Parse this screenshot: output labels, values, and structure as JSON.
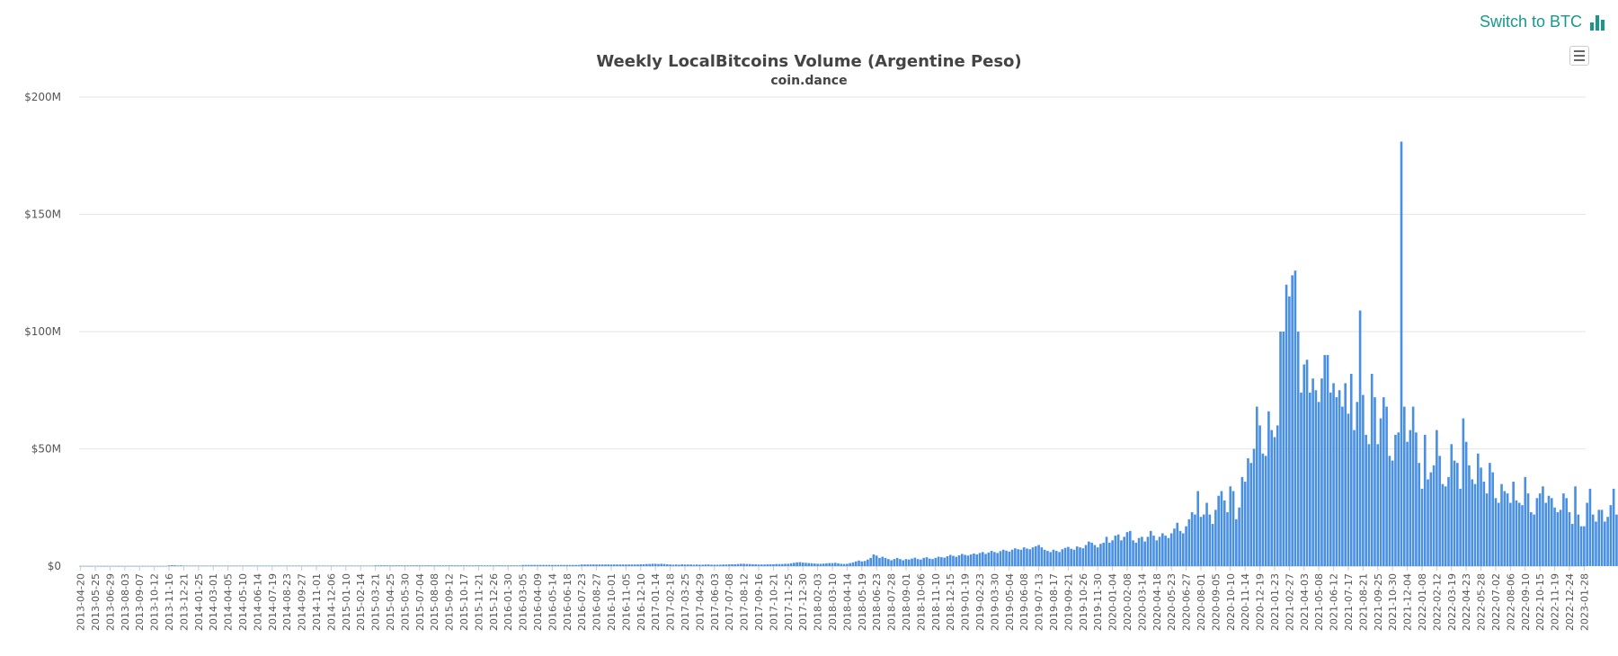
{
  "switch_label": "Switch to BTC",
  "colors": {
    "accent": "#16998a",
    "bar": "#4a90e2",
    "grid": "#e6e6e6"
  },
  "icons": {
    "switch": "bar-chart-icon",
    "menu": "hamburger-menu-icon"
  },
  "chart_data": {
    "type": "bar",
    "title": "Weekly LocalBitcoins Volume (Argentine Peso)",
    "subtitle": "coin.dance",
    "ylabel": "",
    "xlabel": "",
    "ylim": [
      0,
      200000000
    ],
    "yticks": [
      0,
      50000000,
      100000000,
      150000000,
      200000000
    ],
    "ytick_labels": [
      "$0",
      "$50M",
      "$100M",
      "$150M",
      "$200M"
    ],
    "grid": true,
    "legend": "none",
    "start_week": "2013-04-20",
    "week_count": 511,
    "xtick_labels": [
      "2013-04-20",
      "2013-05-25",
      "2013-06-29",
      "2013-08-03",
      "2013-09-07",
      "2013-10-12",
      "2013-11-16",
      "2013-12-21",
      "2014-01-25",
      "2014-03-01",
      "2014-04-05",
      "2014-05-10",
      "2014-06-14",
      "2014-07-19",
      "2014-08-23",
      "2014-09-27",
      "2014-11-01",
      "2014-12-06",
      "2015-01-10",
      "2015-02-14",
      "2015-03-21",
      "2015-04-25",
      "2015-05-30",
      "2015-07-04",
      "2015-08-08",
      "2015-09-12",
      "2015-10-17",
      "2015-11-21",
      "2015-12-26",
      "2016-01-30",
      "2016-03-05",
      "2016-04-09",
      "2016-05-14",
      "2016-06-18",
      "2016-07-23",
      "2016-08-27",
      "2016-10-01",
      "2016-11-05",
      "2016-12-10",
      "2017-01-14",
      "2017-02-18",
      "2017-03-25",
      "2017-04-29",
      "2017-06-03",
      "2017-07-08",
      "2017-08-12",
      "2017-09-16",
      "2017-10-21",
      "2017-11-25",
      "2017-12-30",
      "2018-02-03",
      "2018-03-10",
      "2018-04-14",
      "2018-05-19",
      "2018-06-23",
      "2018-07-28",
      "2018-09-01",
      "2018-10-06",
      "2018-11-10",
      "2018-12-15",
      "2019-01-19",
      "2019-02-23",
      "2019-03-30",
      "2019-05-04",
      "2019-06-08",
      "2019-07-13",
      "2019-08-17",
      "2019-09-21",
      "2019-10-26",
      "2019-11-30",
      "2020-01-04",
      "2020-02-08",
      "2020-03-14",
      "2020-04-18",
      "2020-05-23",
      "2020-06-27",
      "2020-08-01",
      "2020-09-05",
      "2020-10-10",
      "2020-11-14",
      "2020-12-19",
      "2021-01-23",
      "2021-02-27",
      "2021-04-03",
      "2021-05-08",
      "2021-06-12",
      "2021-07-17",
      "2021-08-21",
      "2021-09-25",
      "2021-10-30",
      "2021-12-04",
      "2022-01-08",
      "2022-02-12",
      "2022-03-19",
      "2022-04-23",
      "2022-05-28",
      "2022-07-02",
      "2022-08-06",
      "2022-09-10",
      "2022-10-15",
      "2022-11-19",
      "2022-12-24",
      "2023-01-28"
    ],
    "series": [
      {
        "values": [
          50000,
          50000,
          50000,
          50000,
          50000,
          50000,
          50000,
          50000,
          50000,
          50000,
          50000,
          50000,
          50000,
          50000,
          50000,
          50000,
          50000,
          50000,
          50000,
          50000,
          50000,
          50000,
          50000,
          50000,
          50000,
          50000,
          50000,
          50000,
          50000,
          50000,
          300000,
          400000,
          350000,
          250000,
          300000,
          200000,
          200000,
          200000,
          200000,
          200000,
          200000,
          200000,
          200000,
          200000,
          200000,
          200000,
          200000,
          200000,
          200000,
          200000,
          200000,
          200000,
          200000,
          200000,
          200000,
          200000,
          200000,
          200000,
          200000,
          200000,
          200000,
          200000,
          200000,
          200000,
          200000,
          200000,
          200000,
          200000,
          200000,
          200000,
          200000,
          200000,
          200000,
          200000,
          200000,
          200000,
          200000,
          200000,
          200000,
          200000,
          200000,
          200000,
          200000,
          200000,
          200000,
          200000,
          200000,
          200000,
          200000,
          200000,
          200000,
          200000,
          200000,
          200000,
          200000,
          200000,
          200000,
          200000,
          200000,
          200000,
          300000,
          300000,
          300000,
          300000,
          300000,
          300000,
          300000,
          300000,
          300000,
          300000,
          300000,
          300000,
          300000,
          300000,
          300000,
          300000,
          300000,
          300000,
          300000,
          300000,
          300000,
          300000,
          300000,
          300000,
          300000,
          300000,
          300000,
          300000,
          300000,
          300000,
          300000,
          300000,
          300000,
          300000,
          300000,
          300000,
          300000,
          300000,
          300000,
          300000,
          300000,
          300000,
          300000,
          300000,
          300000,
          300000,
          300000,
          300000,
          300000,
          300000,
          500000,
          500000,
          500000,
          500000,
          500000,
          500000,
          500000,
          500000,
          500000,
          500000,
          500000,
          500000,
          500000,
          500000,
          500000,
          500000,
          500000,
          500000,
          500000,
          500000,
          700000,
          700000,
          700000,
          700000,
          700000,
          700000,
          700000,
          700000,
          700000,
          700000,
          700000,
          700000,
          700000,
          700000,
          700000,
          700000,
          700000,
          700000,
          700000,
          700000,
          800000,
          800000,
          900000,
          900000,
          1000000,
          1000000,
          900000,
          1000000,
          900000,
          800000,
          700000,
          600000,
          700000,
          600000,
          800000,
          700000,
          700000,
          700000,
          600000,
          700000,
          600000,
          600000,
          700000,
          700000,
          600000,
          600000,
          600000,
          600000,
          700000,
          700000,
          800000,
          800000,
          800000,
          900000,
          1000000,
          1000000,
          900000,
          900000,
          800000,
          800000,
          700000,
          700000,
          700000,
          800000,
          800000,
          800000,
          900000,
          900000,
          900000,
          1000000,
          1000000,
          1200000,
          1400000,
          1600000,
          1700000,
          1500000,
          1400000,
          1300000,
          1200000,
          1100000,
          1000000,
          1000000,
          1100000,
          1200000,
          1300000,
          1300000,
          1400000,
          1200000,
          1000000,
          900000,
          1000000,
          1300000,
          1600000,
          2000000,
          2400000,
          2000000,
          2200000,
          2800000,
          3500000,
          5000000,
          4500000,
          3500000,
          4000000,
          3500000,
          3000000,
          2500000,
          3000000,
          3500000,
          3000000,
          2500000,
          3000000,
          2800000,
          3200000,
          3600000,
          3000000,
          2800000,
          3500000,
          3800000,
          3200000,
          3000000,
          3500000,
          4000000,
          3800000,
          3600000,
          4200000,
          4800000,
          4400000,
          4000000,
          4600000,
          5200000,
          4800000,
          4500000,
          5000000,
          5400000,
          5000000,
          5600000,
          6000000,
          5200000,
          5800000,
          6500000,
          6000000,
          5600000,
          6400000,
          7000000,
          6600000,
          6200000,
          7000000,
          7600000,
          7200000,
          7000000,
          8000000,
          7500000,
          7200000,
          8000000,
          8500000,
          9000000,
          8000000,
          7000000,
          6500000,
          6000000,
          7000000,
          6500000,
          6000000,
          7200000,
          7800000,
          8200000,
          7400000,
          7000000,
          8400000,
          8000000,
          7600000,
          9000000,
          10500000,
          10000000,
          9000000,
          8000000,
          9500000,
          10000000,
          12500000,
          10000000,
          11000000,
          13000000,
          13500000,
          11000000,
          12500000,
          14500000,
          15000000,
          11000000,
          10000000,
          12000000,
          12500000,
          10500000,
          12500000,
          15000000,
          13000000,
          11000000,
          12500000,
          14000000,
          13000000,
          12000000,
          14000000,
          16000000,
          18500000,
          15000000,
          14000000,
          17000000,
          20000000,
          23000000,
          22000000,
          32000000,
          21000000,
          22000000,
          27000000,
          22000000,
          18000000,
          24000000,
          30000000,
          32000000,
          28000000,
          23000000,
          34000000,
          32000000,
          20000000,
          25000000,
          38000000,
          36000000,
          46000000,
          44000000,
          50000000,
          68000000,
          60000000,
          48000000,
          47000000,
          66000000,
          58000000,
          55000000,
          60000000,
          100000000,
          100000000,
          120000000,
          115000000,
          124000000,
          126000000,
          100000000,
          74000000,
          86000000,
          88000000,
          74000000,
          80000000,
          75000000,
          70000000,
          80000000,
          90000000,
          90000000,
          74000000,
          78000000,
          72000000,
          75000000,
          68000000,
          78000000,
          65000000,
          82000000,
          58000000,
          70000000,
          109000000,
          73000000,
          56000000,
          52000000,
          82000000,
          72000000,
          52000000,
          63000000,
          72000000,
          68000000,
          47000000,
          45000000,
          56000000,
          57000000,
          181000000,
          68000000,
          53000000,
          58000000,
          68000000,
          57000000,
          44000000,
          33000000,
          56000000,
          37000000,
          40000000,
          43000000,
          58000000,
          47000000,
          35000000,
          34000000,
          38000000,
          52000000,
          45000000,
          44000000,
          33000000,
          63000000,
          53000000,
          43000000,
          37000000,
          35000000,
          48000000,
          42000000,
          36000000,
          31000000,
          44000000,
          40000000,
          29000000,
          27000000,
          35000000,
          32000000,
          31000000,
          27000000,
          36000000,
          28000000,
          27000000,
          26000000,
          38000000,
          31000000,
          23000000,
          22000000,
          29000000,
          31000000,
          34000000,
          27000000,
          30000000,
          29000000,
          25000000,
          23000000,
          24000000,
          31000000,
          29000000,
          23000000,
          18000000,
          34000000,
          22000000,
          17000000,
          17000000,
          27000000,
          33000000,
          22000000,
          19000000,
          24000000,
          24000000,
          19000000,
          21000000,
          26000000,
          33000000,
          22000000,
          21000000,
          24000000,
          27000000,
          19000000,
          24000000,
          28000000,
          22000000,
          17000000,
          25000000,
          29000000,
          28000000,
          19000000,
          27000000,
          33000000,
          25000000,
          20000000,
          27000000,
          40000000,
          43000000,
          16000000
        ]
      }
    ]
  }
}
